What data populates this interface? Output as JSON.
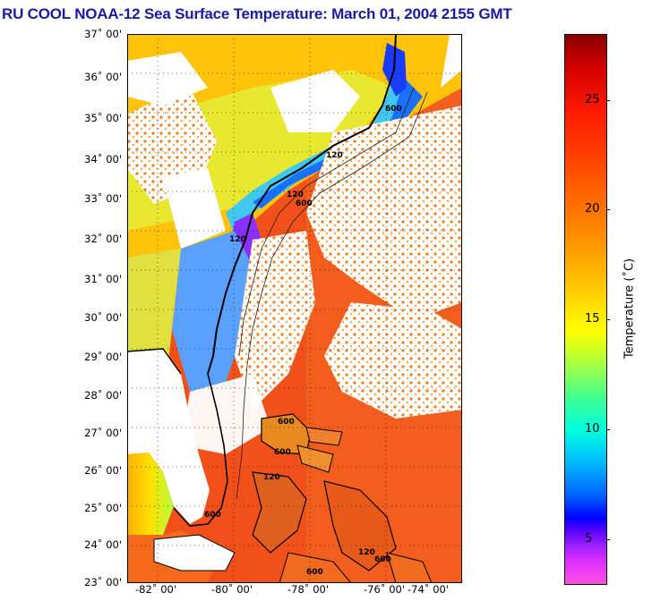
{
  "title": "RU COOL  NOAA-12  Sea Surface Temperature:  March 01, 2004 2155 GMT",
  "map": {
    "lat_range": [
      23,
      37
    ],
    "lon_range": [
      -83.2,
      -74.4
    ],
    "lat_labels": [
      "37˚ 00'",
      "36˚ 00'",
      "35˚ 00'",
      "34˚ 00'",
      "33˚ 00'",
      "32˚ 00'",
      "31˚ 00'",
      "30˚ 00'",
      "29˚ 00'",
      "28˚ 00'",
      "27˚ 00'",
      "26˚ 00'",
      "25˚ 00'",
      "24˚ 00'",
      "23˚ 00'"
    ],
    "lon_labels": [
      "-82˚ 00'",
      "-80˚ 00'",
      "-78˚ 00'",
      "-76˚ 00'",
      "-74˚ 00'"
    ],
    "isobath_labels": [
      "120",
      "120",
      "600",
      "120",
      "600",
      "600",
      "600",
      "600",
      "120",
      "600",
      "120",
      "600"
    ],
    "colors": {
      "land": "#ffffff",
      "cloud": "#ffffff",
      "coast": "#000000",
      "gulf_stream": "#f24a12"
    }
  },
  "colorbar": {
    "label": "Temperature (˚C)",
    "range": [
      3,
      28
    ],
    "ticks": [
      "5",
      "10",
      "15",
      "20",
      "25"
    ],
    "tick_values": [
      5,
      10,
      15,
      20,
      25
    ]
  }
}
